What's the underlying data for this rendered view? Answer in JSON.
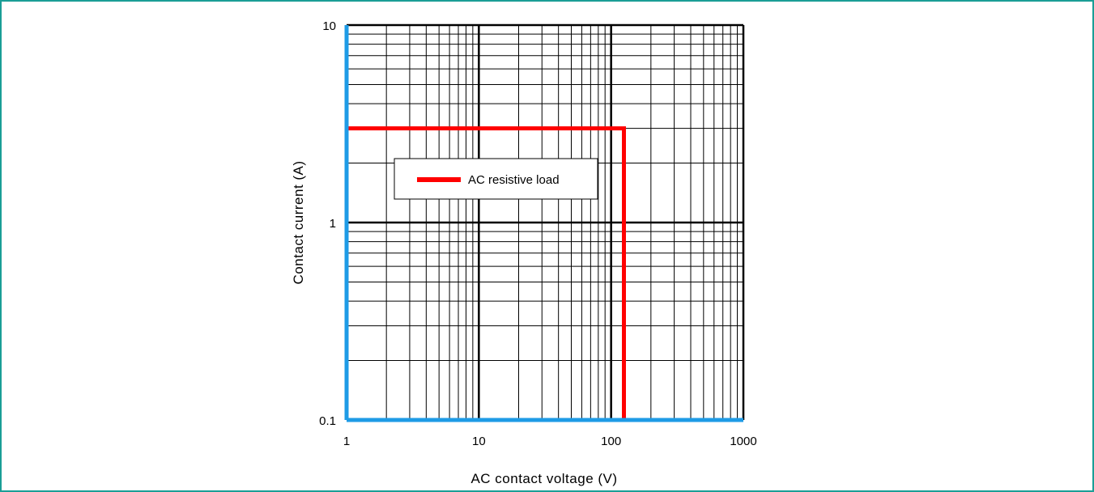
{
  "chart_data": {
    "type": "line",
    "xlabel": "AC contact voltage (V)",
    "ylabel": "Contact current (A)",
    "x_scale": "log",
    "y_scale": "log",
    "xlim": [
      1,
      1000
    ],
    "ylim": [
      0.1,
      10
    ],
    "x_ticks": [
      "1",
      "10",
      "100",
      "1000"
    ],
    "y_ticks": [
      "0.1",
      "1",
      "10"
    ],
    "grid": true,
    "legend_position": "upper-left",
    "series": [
      {
        "name": "AC resistive load",
        "color": "#ff0000",
        "points": [
          {
            "x": 1,
            "y": 3
          },
          {
            "x": 125,
            "y": 3
          },
          {
            "x": 125,
            "y": 0.1
          }
        ]
      }
    ],
    "colors": {
      "axis": "#1e9be6",
      "major_grid": "#000000",
      "minor_grid": "#000000",
      "frame_border": "#1a9e96"
    }
  }
}
